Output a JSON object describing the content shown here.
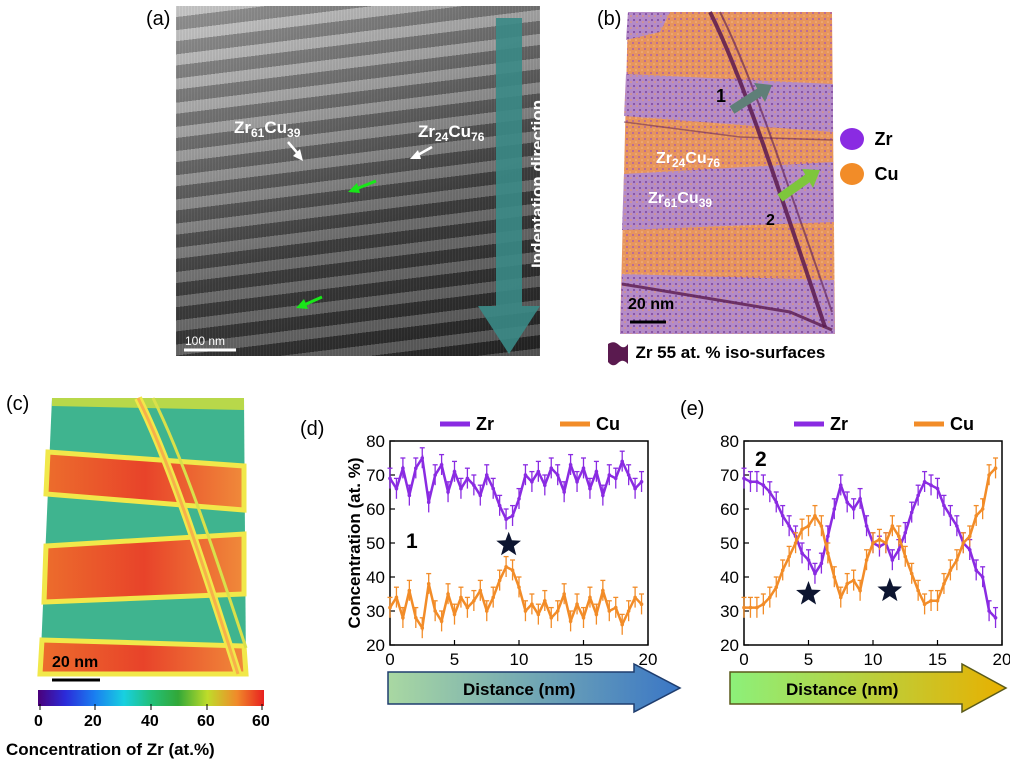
{
  "panels": {
    "a": {
      "label": "(a)",
      "phase1": {
        "base": "Zr",
        "n1": "61",
        "el2": "Cu",
        "n2": "39"
      },
      "phase2": {
        "base": "Zr",
        "n1": "24",
        "el2": "Cu",
        "n2": "76"
      },
      "arrow_text": "Indentation  direction",
      "scalebar": "100 nm"
    },
    "b": {
      "label": "(b)",
      "marker1": "1",
      "marker2": "2",
      "phase1": {
        "base": "Zr",
        "n1": "24",
        "el2": "Cu",
        "n2": "76"
      },
      "phase2": {
        "base": "Zr",
        "n1": "61",
        "el2": "Cu",
        "n2": "39"
      },
      "legend_zr": "Zr",
      "legend_cu": "Cu",
      "legend_zr_color": "#8a2be2",
      "legend_cu_color": "#f28c28",
      "scalebar": "20 nm",
      "isosurface": "Zr 55 at. % iso-surfaces"
    },
    "c": {
      "label": "(c)",
      "scalebar": "20 nm",
      "colorbar_ticks": [
        "0",
        "20",
        "40",
        "60",
        "60"
      ],
      "colorbar_title": "Concentration of Zr (at.%)"
    },
    "d": {
      "label": "(d)",
      "marker": "1",
      "arrow_text": "Distance (nm)"
    },
    "e": {
      "label": "(e)",
      "marker": "2",
      "arrow_text": "Distance (nm)"
    }
  },
  "chart_data": [
    {
      "type": "line",
      "panel": "d",
      "xlabel": "",
      "ylabel": "Concentration (at. %)",
      "xlim": [
        0,
        20
      ],
      "ylim": [
        20,
        80
      ],
      "xticks": [
        "0",
        "5",
        "10",
        "15",
        "20"
      ],
      "yticks": [
        "20",
        "30",
        "40",
        "50",
        "60",
        "70",
        "80"
      ],
      "legend": "top",
      "star_at": [
        9.2,
        49.5
      ],
      "colors": {
        "Zr": "#8a2be2",
        "Cu": "#f28c28"
      },
      "x": [
        0,
        0.5,
        1,
        1.5,
        2,
        2.5,
        3,
        3.5,
        4,
        4.5,
        5,
        5.5,
        6,
        6.5,
        7,
        7.5,
        8,
        8.5,
        9,
        9.5,
        10,
        10.5,
        11,
        11.5,
        12,
        12.5,
        13,
        13.5,
        14,
        14.5,
        15,
        15.5,
        16,
        16.5,
        17,
        17.5,
        18,
        18.5,
        19,
        19.5
      ],
      "series": [
        {
          "name": "Zr",
          "values": [
            69,
            66,
            72,
            64,
            72,
            75,
            62,
            70,
            73,
            65,
            71,
            66,
            69,
            67,
            64,
            70,
            66,
            61,
            57,
            58,
            63,
            70,
            68,
            71,
            67,
            72,
            70,
            65,
            73,
            68,
            72,
            66,
            71,
            64,
            70,
            69,
            74,
            70,
            66,
            68
          ]
        },
        {
          "name": "Cu",
          "values": [
            31,
            34,
            28,
            36,
            28,
            25,
            38,
            30,
            27,
            35,
            29,
            34,
            31,
            33,
            36,
            30,
            34,
            39,
            43,
            42,
            37,
            30,
            32,
            29,
            33,
            28,
            30,
            35,
            27,
            32,
            28,
            34,
            29,
            36,
            30,
            31,
            26,
            30,
            34,
            32
          ]
        }
      ],
      "error": 3
    },
    {
      "type": "line",
      "panel": "e",
      "xlabel": "",
      "ylabel": "",
      "xlim": [
        0,
        20
      ],
      "ylim": [
        20,
        80
      ],
      "xticks": [
        "0",
        "5",
        "10",
        "15",
        "20"
      ],
      "yticks": [
        "20",
        "30",
        "40",
        "50",
        "60",
        "70",
        "80"
      ],
      "legend": "top",
      "stars_at": [
        [
          5,
          35
        ],
        [
          11.3,
          36
        ]
      ],
      "colors": {
        "Zr": "#8a2be2",
        "Cu": "#f28c28"
      },
      "x": [
        0,
        0.5,
        1,
        1.5,
        2,
        2.5,
        3,
        3.5,
        4,
        4.5,
        5,
        5.5,
        6,
        6.5,
        7,
        7.5,
        8,
        8.5,
        9,
        9.5,
        10,
        10.5,
        11,
        11.5,
        12,
        12.5,
        13,
        13.5,
        14,
        14.5,
        15,
        15.5,
        16,
        16.5,
        17,
        17.5,
        18,
        18.5,
        19,
        19.5
      ],
      "series": [
        {
          "name": "Zr",
          "values": [
            69,
            68,
            68,
            67,
            65,
            62,
            58,
            55,
            52,
            47,
            45,
            41,
            44,
            52,
            60,
            67,
            62,
            60,
            63,
            55,
            50,
            49,
            50,
            45,
            48,
            53,
            59,
            64,
            68,
            67,
            66,
            61,
            58,
            55,
            50,
            48,
            42,
            40,
            30,
            28
          ]
        },
        {
          "name": "Cu",
          "values": [
            31,
            31,
            31,
            32,
            34,
            37,
            42,
            46,
            50,
            54,
            55,
            58,
            55,
            47,
            40,
            34,
            38,
            39,
            36,
            45,
            50,
            51,
            50,
            55,
            52,
            46,
            41,
            36,
            32,
            33,
            33,
            38,
            42,
            45,
            50,
            52,
            58,
            60,
            70,
            72
          ]
        }
      ],
      "error": 3
    }
  ]
}
